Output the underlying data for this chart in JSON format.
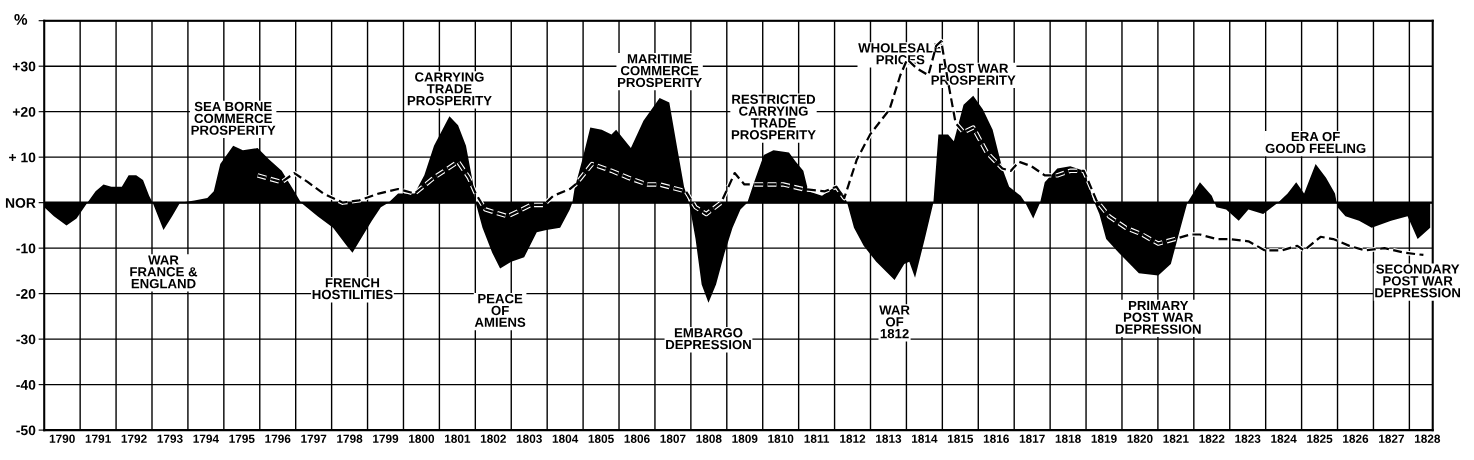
{
  "chart_data": {
    "type": "area",
    "ylabel": "%",
    "xlim": [
      1790,
      1828.65
    ],
    "ylim": [
      -50,
      40
    ],
    "yticks": [
      {
        "value": -50,
        "label": "-50"
      },
      {
        "value": -40,
        "label": "-40"
      },
      {
        "value": -30,
        "label": "-30"
      },
      {
        "value": -20,
        "label": "-20"
      },
      {
        "value": -10,
        "label": "-10"
      },
      {
        "value": 0,
        "label": "NOR"
      },
      {
        "value": 10,
        "label": "+ 10"
      },
      {
        "value": 20,
        "label": "+20"
      },
      {
        "value": 30,
        "label": "+30"
      },
      {
        "value": 40,
        "label": null
      }
    ],
    "xticks": [
      {
        "value": 1790,
        "label": null
      },
      {
        "value": 1790.5,
        "label": "1790"
      },
      {
        "value": 1791,
        "label": null
      },
      {
        "value": 1791.5,
        "label": "1791"
      },
      {
        "value": 1792,
        "label": null
      },
      {
        "value": 1792.5,
        "label": "1792"
      },
      {
        "value": 1793,
        "label": null
      },
      {
        "value": 1793.5,
        "label": "1793"
      },
      {
        "value": 1794,
        "label": null
      },
      {
        "value": 1794.5,
        "label": "1794"
      },
      {
        "value": 1795,
        "label": null
      },
      {
        "value": 1795.5,
        "label": "1795"
      },
      {
        "value": 1796,
        "label": null
      },
      {
        "value": 1796.5,
        "label": "1796"
      },
      {
        "value": 1797,
        "label": null
      },
      {
        "value": 1797.5,
        "label": "1797"
      },
      {
        "value": 1798,
        "label": null
      },
      {
        "value": 1798.5,
        "label": "1798"
      },
      {
        "value": 1799,
        "label": null
      },
      {
        "value": 1799.5,
        "label": "1799"
      },
      {
        "value": 1800,
        "label": null
      },
      {
        "value": 1800.5,
        "label": "1800"
      },
      {
        "value": 1801,
        "label": null
      },
      {
        "value": 1801.5,
        "label": "1801"
      },
      {
        "value": 1802,
        "label": null
      },
      {
        "value": 1802.5,
        "label": "1802"
      },
      {
        "value": 1803,
        "label": null
      },
      {
        "value": 1803.5,
        "label": "1803"
      },
      {
        "value": 1804,
        "label": null
      },
      {
        "value": 1804.5,
        "label": "1804"
      },
      {
        "value": 1805,
        "label": null
      },
      {
        "value": 1805.5,
        "label": "1805"
      },
      {
        "value": 1806,
        "label": null
      },
      {
        "value": 1806.5,
        "label": "1806"
      },
      {
        "value": 1807,
        "label": null
      },
      {
        "value": 1807.5,
        "label": "1807"
      },
      {
        "value": 1808,
        "label": null
      },
      {
        "value": 1808.5,
        "label": "1808"
      },
      {
        "value": 1809,
        "label": null
      },
      {
        "value": 1809.5,
        "label": "1809"
      },
      {
        "value": 1810,
        "label": null
      },
      {
        "value": 1810.5,
        "label": "1810"
      },
      {
        "value": 1811,
        "label": null
      },
      {
        "value": 1811.5,
        "label": "1811"
      },
      {
        "value": 1812,
        "label": null
      },
      {
        "value": 1812.5,
        "label": "1812"
      },
      {
        "value": 1813,
        "label": null
      },
      {
        "value": 1813.5,
        "label": "1813"
      },
      {
        "value": 1814,
        "label": null
      },
      {
        "value": 1814.5,
        "label": "1814"
      },
      {
        "value": 1815,
        "label": null
      },
      {
        "value": 1815.5,
        "label": "1815"
      },
      {
        "value": 1816,
        "label": null
      },
      {
        "value": 1816.5,
        "label": "1816"
      },
      {
        "value": 1817,
        "label": null
      },
      {
        "value": 1817.5,
        "label": "1817"
      },
      {
        "value": 1818,
        "label": null
      },
      {
        "value": 1818.5,
        "label": "1818"
      },
      {
        "value": 1819,
        "label": null
      },
      {
        "value": 1819.5,
        "label": "1819"
      },
      {
        "value": 1820,
        "label": null
      },
      {
        "value": 1820.5,
        "label": "1820"
      },
      {
        "value": 1821,
        "label": null
      },
      {
        "value": 1821.5,
        "label": "1821"
      },
      {
        "value": 1822,
        "label": null
      },
      {
        "value": 1822.5,
        "label": "1822"
      },
      {
        "value": 1823,
        "label": null
      },
      {
        "value": 1823.5,
        "label": "1823"
      },
      {
        "value": 1824,
        "label": null
      },
      {
        "value": 1824.5,
        "label": "1824"
      },
      {
        "value": 1825,
        "label": null
      },
      {
        "value": 1825.5,
        "label": "1825"
      },
      {
        "value": 1826,
        "label": null
      },
      {
        "value": 1826.5,
        "label": "1826"
      },
      {
        "value": 1827,
        "label": null
      },
      {
        "value": 1827.5,
        "label": "1827"
      },
      {
        "value": 1828,
        "label": null
      },
      {
        "value": 1828.5,
        "label": "1828"
      }
    ],
    "grid": true,
    "series": [
      {
        "color": "#000000",
        "x": [
          1790.0,
          1790.27,
          1790.62,
          1790.9,
          1791.2,
          1791.43,
          1791.65,
          1791.87,
          1792.16,
          1792.35,
          1792.56,
          1792.75,
          1792.92,
          1793.02,
          1793.32,
          1793.56,
          1793.78,
          1794.18,
          1794.54,
          1794.72,
          1794.9,
          1795.26,
          1795.53,
          1795.94,
          1796.26,
          1796.61,
          1796.96,
          1797.15,
          1797.61,
          1798.04,
          1798.42,
          1798.58,
          1798.85,
          1799.12,
          1799.37,
          1799.58,
          1799.85,
          1800.31,
          1800.58,
          1800.85,
          1801.28,
          1801.52,
          1801.74,
          1801.93,
          1802.01,
          1802.2,
          1802.47,
          1802.69,
          1803.0,
          1803.36,
          1803.71,
          1803.98,
          1804.36,
          1804.63,
          1804.7,
          1804.76,
          1804.98,
          1805.2,
          1805.52,
          1805.79,
          1805.92,
          1806.33,
          1806.68,
          1807.13,
          1807.4,
          1807.62,
          1807.81,
          1807.95,
          1808.13,
          1808.3,
          1808.49,
          1808.7,
          1808.94,
          1809.16,
          1809.38,
          1809.57,
          1809.76,
          1810.03,
          1810.3,
          1810.73,
          1810.92,
          1811.13,
          1811.27,
          1811.65,
          1811.92,
          1812.08,
          1812.27,
          1812.35,
          1812.54,
          1812.81,
          1813.16,
          1813.67,
          1813.94,
          1814.08,
          1814.24,
          1814.51,
          1814.75,
          1814.89,
          1815.16,
          1815.32,
          1815.59,
          1815.86,
          1816.13,
          1816.4,
          1816.67,
          1816.86,
          1817.18,
          1817.31,
          1817.53,
          1817.72,
          1817.85,
          1818.2,
          1818.56,
          1818.94,
          1819.21,
          1819.37,
          1819.56,
          1819.91,
          1820.28,
          1820.47,
          1821.01,
          1821.36,
          1821.63,
          1821.82,
          1822.17,
          1822.5,
          1822.63,
          1822.9,
          1823.25,
          1823.52,
          1823.93,
          1824.34,
          1824.61,
          1824.85,
          1825.07,
          1825.39,
          1825.68,
          1825.93,
          1826.0,
          1826.22,
          1826.6,
          1826.95,
          1827.49,
          1827.95,
          1828.23,
          1828.58
        ],
        "values": [
          -1,
          -3,
          -5,
          -3.5,
          0,
          2.5,
          4,
          3.5,
          3.5,
          6,
          6,
          5,
          1.5,
          0,
          -6,
          -3,
          0,
          0.5,
          1,
          2.5,
          8.5,
          12.5,
          11.5,
          12,
          9.5,
          7,
          2.5,
          0,
          -3,
          -5.5,
          -9.5,
          -11,
          -7.5,
          -4,
          -1,
          0,
          2,
          2,
          6,
          12.5,
          19,
          17,
          12.5,
          4.5,
          0,
          -5.5,
          -11,
          -14.5,
          -13,
          -12,
          -6.5,
          -6,
          -5.5,
          -1.5,
          0,
          3,
          9.5,
          16.5,
          16,
          15,
          16,
          12,
          18,
          23,
          22,
          12,
          3.5,
          0,
          -8,
          -18,
          -22,
          -18,
          -11,
          -5.5,
          -1.5,
          0,
          4.5,
          10.5,
          11.5,
          11,
          9,
          7,
          2.5,
          1.5,
          3,
          3.5,
          1.5,
          0,
          -5.5,
          -9.5,
          -13,
          -17,
          -13.5,
          -13,
          -16.5,
          -8,
          0,
          15,
          15,
          13.5,
          21.5,
          23.5,
          20.5,
          16,
          7.5,
          3.5,
          1.5,
          0,
          -3.5,
          0,
          4.5,
          7.5,
          8,
          7,
          0.5,
          -2.5,
          -8,
          -11,
          -14,
          -15.5,
          -16,
          -13.5,
          -5.5,
          0,
          4.5,
          1.5,
          -1,
          -1.5,
          -4,
          -1.5,
          -2.5,
          0,
          2,
          4.5,
          2,
          8.5,
          5.5,
          2,
          -1,
          -3,
          -4,
          -5.5,
          -4,
          -3,
          -8,
          -5.5
        ]
      },
      {
        "type": "line",
        "color": "#000000",
        "line_style": "dashed",
        "x": [
          1795.94,
          1796.61,
          1796.96,
          1797.34,
          1797.77,
          1798.31,
          1798.77,
          1799.31,
          1799.85,
          1800.31,
          1800.85,
          1801.52,
          1801.82,
          1802.01,
          1802.28,
          1802.9,
          1803.55,
          1803.9,
          1804.17,
          1804.63,
          1804.79,
          1805.25,
          1805.79,
          1806.25,
          1806.79,
          1807.13,
          1807.86,
          1808.13,
          1808.43,
          1808.84,
          1809.22,
          1809.49,
          1810.03,
          1810.57,
          1811.11,
          1811.73,
          1812.05,
          1812.27,
          1812.62,
          1812.99,
          1813.53,
          1813.83,
          1814.02,
          1814.29,
          1814.61,
          1814.83,
          1814.97,
          1815.16,
          1815.37,
          1815.59,
          1815.86,
          1816.24,
          1816.67,
          1816.91,
          1817.13,
          1817.48,
          1817.85,
          1818.2,
          1818.56,
          1818.94,
          1819.29,
          1819.64,
          1820.1,
          1820.56,
          1821.01,
          1821.47,
          1821.9,
          1822.17,
          1822.63,
          1822.98,
          1823.52,
          1823.98,
          1824.44,
          1824.88,
          1825.07,
          1825.53,
          1825.88,
          1826.33,
          1826.77,
          1827.31,
          1827.85,
          1828.39
        ],
        "values": [
          6,
          4.5,
          6.5,
          4.5,
          2,
          0,
          0.5,
          2,
          3,
          2,
          5.5,
          9,
          5.5,
          2,
          -1.5,
          -3,
          -0.5,
          -0.5,
          1.5,
          3,
          4,
          8.5,
          7,
          5.5,
          4,
          4,
          2.5,
          -1,
          -2.5,
          0,
          6.5,
          4,
          4,
          4,
          3,
          2.5,
          3.5,
          1,
          9.5,
          15,
          20.5,
          28,
          31.5,
          29.5,
          28,
          34.5,
          35.5,
          26.5,
          17.5,
          15.5,
          16.5,
          11,
          7.5,
          7,
          9,
          8,
          6,
          6,
          7,
          7,
          0.5,
          -3,
          -5.5,
          -7,
          -9,
          -8,
          -7,
          -7,
          -8,
          -8,
          -8.5,
          -10.5,
          -10.5,
          -9.5,
          -10.5,
          -7.5,
          -8,
          -9.5,
          -10.5,
          -10,
          -11,
          -11.5
        ]
      }
    ],
    "annotations": [
      {
        "text": "WAR\nFRANCE &\nENGLAND",
        "x": 1793.32,
        "y": -6
      },
      {
        "text": "SEA BORNE\nCOMMERCE\nPROSPERITY",
        "x": 1795.26,
        "y": 12.5
      },
      {
        "text": "FRENCH\nHOSTILITIES",
        "x": 1798.58,
        "y": -11
      },
      {
        "text": "CARRYING\nTRADE\nPROSPERITY",
        "x": 1801.28,
        "y": 19
      },
      {
        "text": "PEACE\nOF\nAMIENS",
        "x": 1802.69,
        "y": -14.5
      },
      {
        "text": "MARITIME\nCOMMERCE\nPROSPERITY",
        "x": 1807.13,
        "y": 23
      },
      {
        "text": "EMBARGO\nDEPRESSION",
        "x": 1808.49,
        "y": -22
      },
      {
        "text": "RESTRICTED\nCARRYING\nTRADE\nPROSPERITY",
        "x": 1810.3,
        "y": 11.5
      },
      {
        "text": "WHOLESALE\nPRICES",
        "x": 1813.83,
        "y": 28
      },
      {
        "text": "WAR\nOF\n1812",
        "x": 1813.67,
        "y": -17
      },
      {
        "text": "POST WAR\nPROSPERITY",
        "x": 1815.86,
        "y": 23.5
      },
      {
        "text": "PRIMARY\nPOST WAR\nDEPRESSION",
        "x": 1821.01,
        "y": -16
      },
      {
        "text": "ERA OF\nGOOD FEELING",
        "x": 1825.39,
        "y": 8.5
      },
      {
        "text": "SECONDARY\nPOST WAR\nDEPRESSION",
        "x": 1828.23,
        "y": -8
      }
    ]
  }
}
